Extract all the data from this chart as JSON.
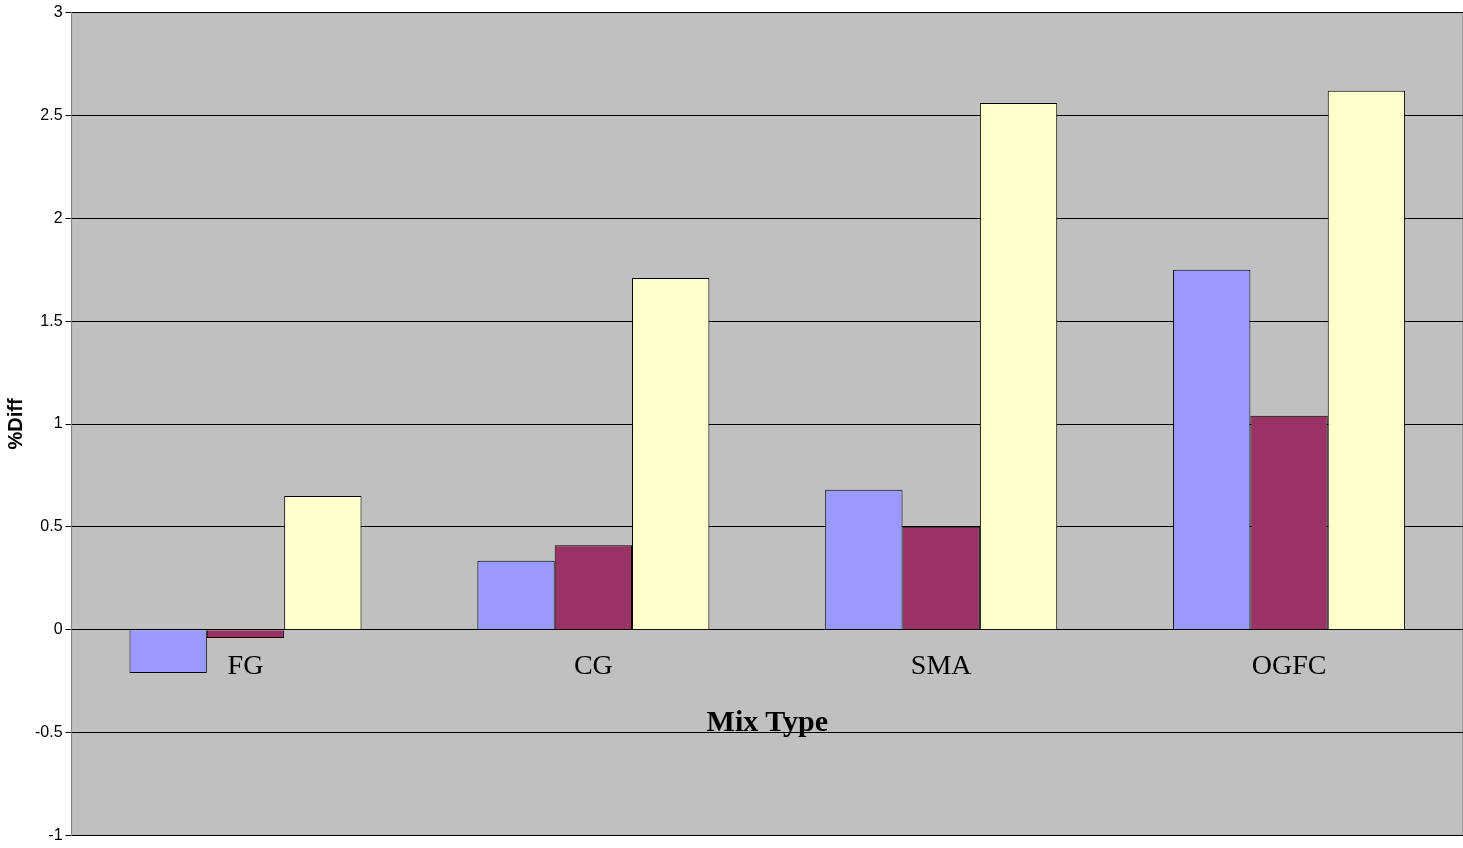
{
  "chart_data": {
    "type": "bar",
    "xlabel": "Mix Type",
    "ylabel": "%Diff",
    "categories": [
      "FG",
      "CG",
      "SMA",
      "OGFC"
    ],
    "series": [
      {
        "color": "#9999ff",
        "values": [
          -0.21,
          0.335,
          0.68,
          1.75
        ]
      },
      {
        "color": "#993366",
        "values": [
          -0.04,
          0.41,
          0.5,
          1.04
        ]
      },
      {
        "color": "#ffffcc",
        "values": [
          0.65,
          1.71,
          2.56,
          2.62
        ]
      }
    ],
    "ylim": [
      -1,
      3
    ],
    "yticks": [
      -1,
      -0.5,
      0,
      0.5,
      1,
      1.5,
      2,
      2.5,
      3
    ],
    "grid": "y",
    "legend": false
  }
}
